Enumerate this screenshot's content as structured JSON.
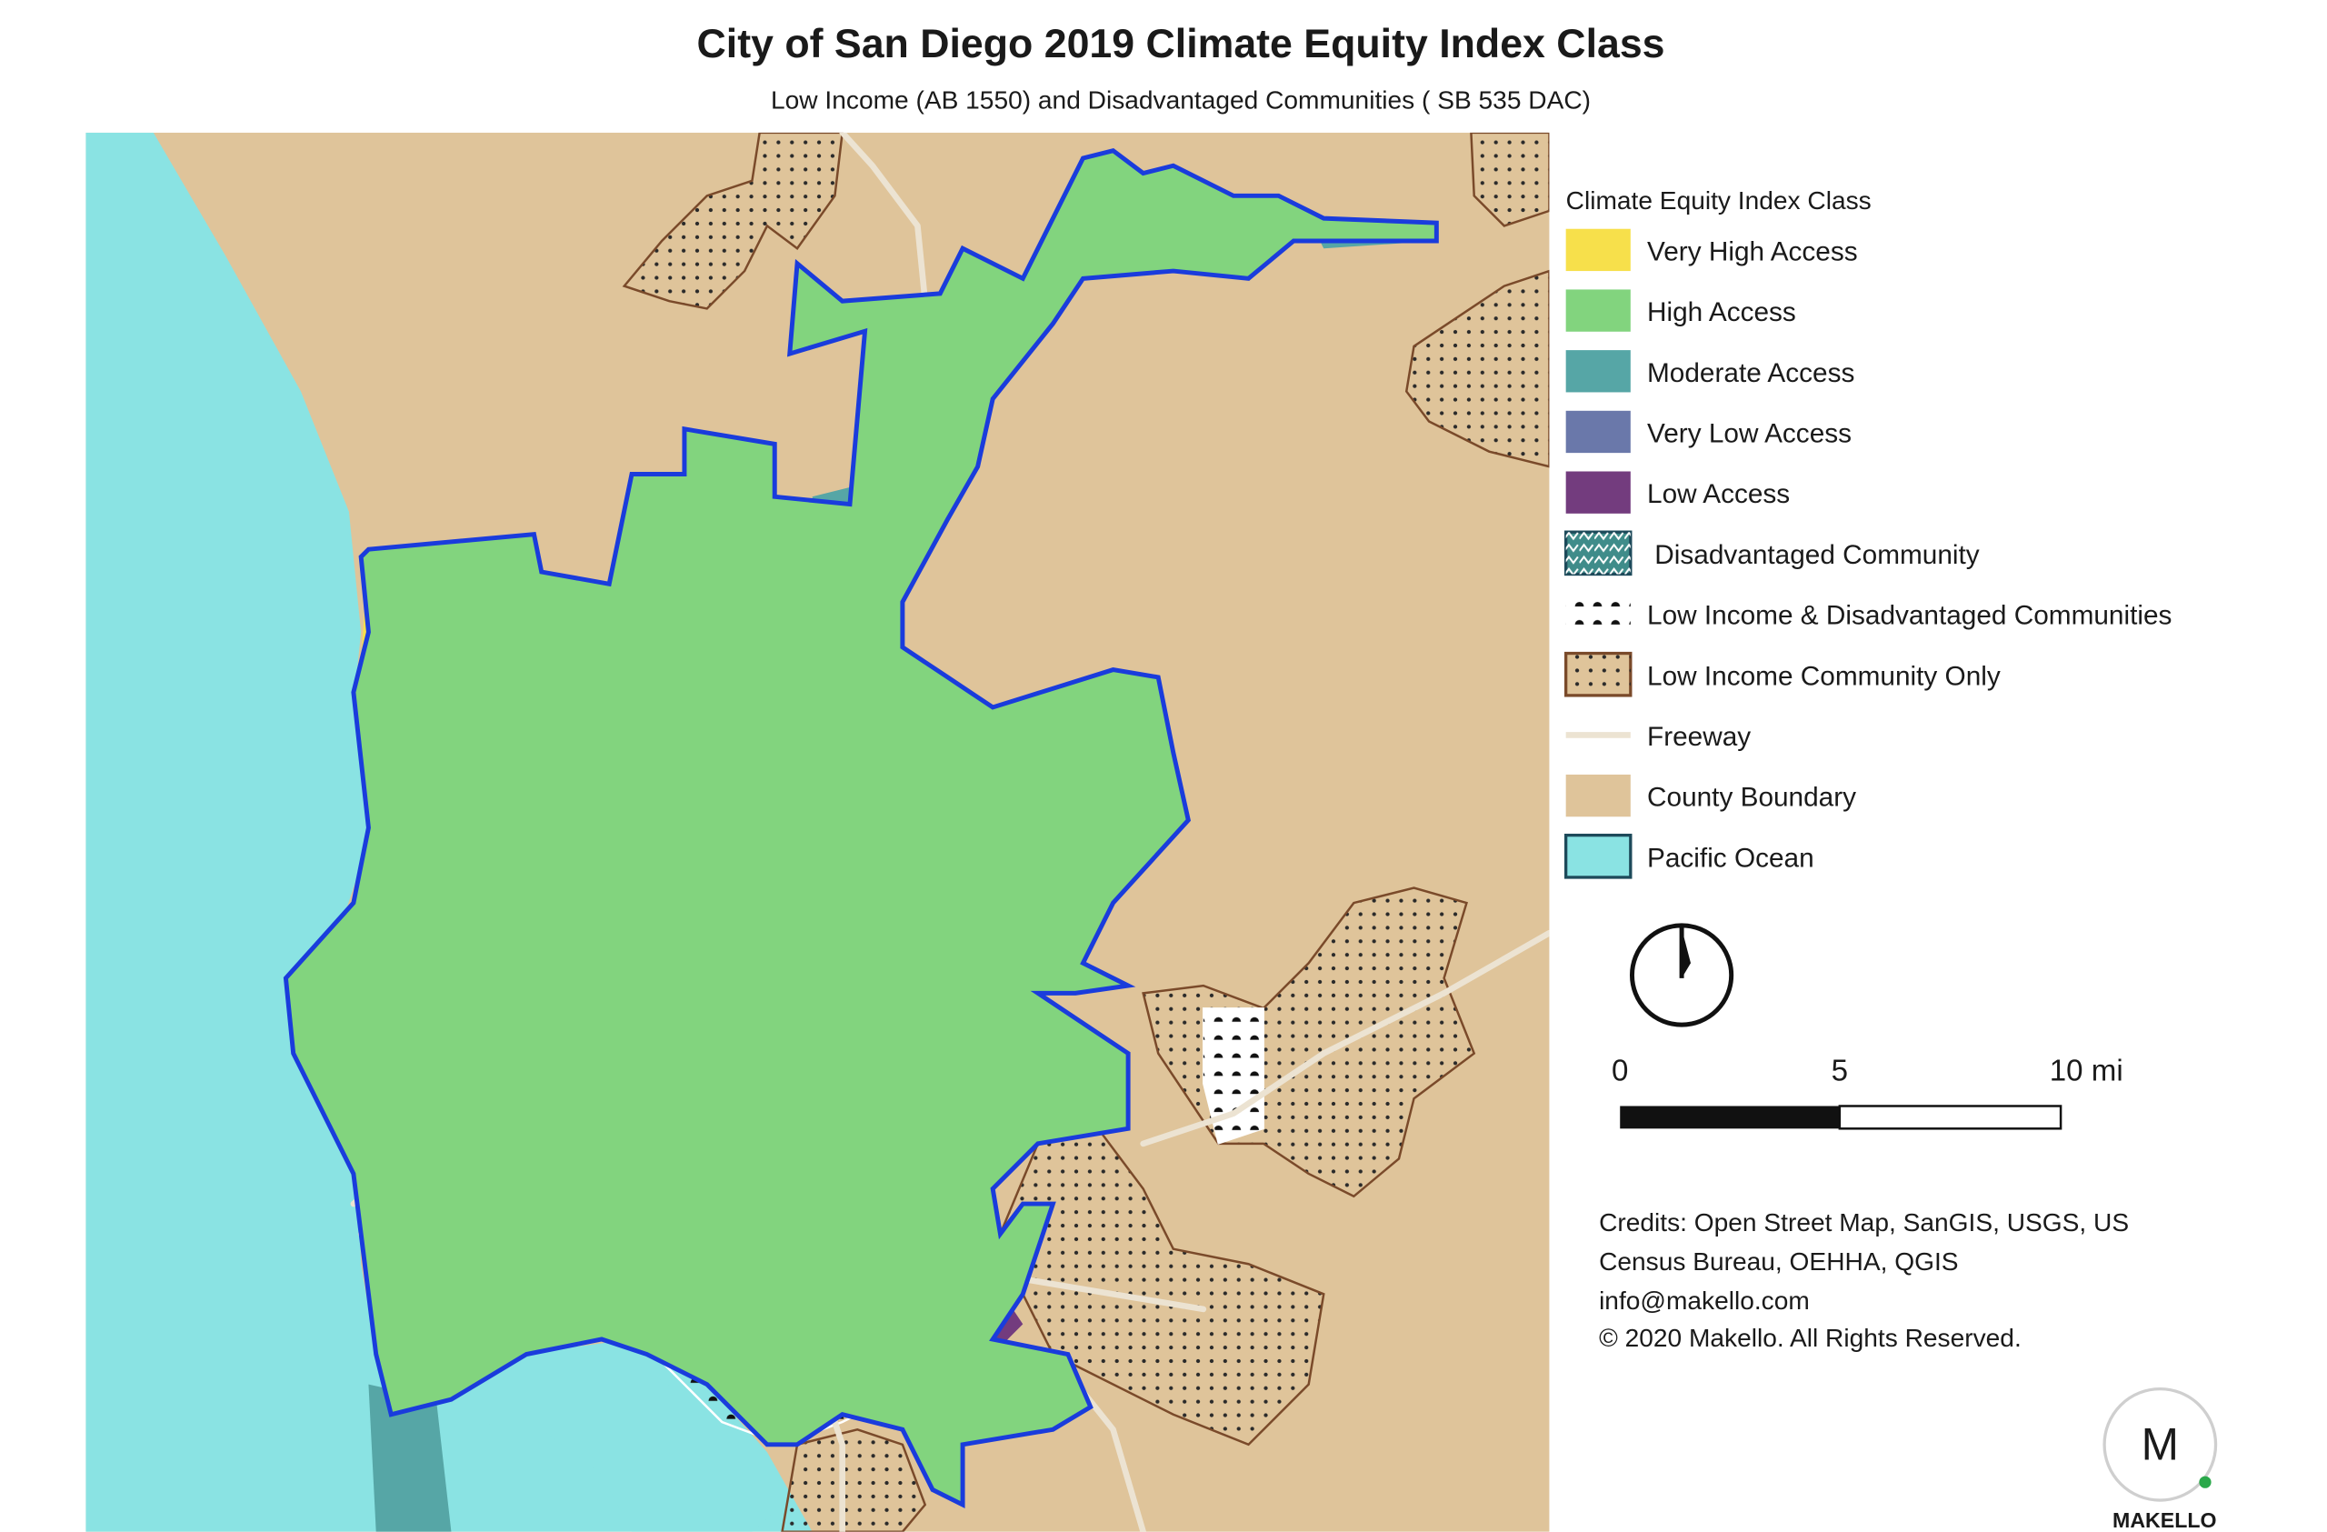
{
  "header": {
    "title": "City of San Diego 2019 Climate Equity Index Class",
    "subtitle": "Low Income (AB 1550) and Disadvantaged Communities ( SB 535 DAC)"
  },
  "legend": {
    "title": "Climate Equity Index Class",
    "items": [
      {
        "label": "Very High Access",
        "color": "#f7e04b"
      },
      {
        "label": "High Access",
        "color": "#82d47e"
      },
      {
        "label": "Moderate Access",
        "color": "#56a6a6"
      },
      {
        "label": "Very Low Access",
        "color": "#6a78aa"
      },
      {
        "label": "Low Access",
        "color": "#733c7e"
      },
      {
        "label": "Disadvantaged Community",
        "color": "#3f8c8a"
      },
      {
        "label": "Low Income & Disadvantaged Communities",
        "color": "#ffffff"
      },
      {
        "label": "Low Income Community Only",
        "color": "#dfc49a"
      },
      {
        "label": "Freeway",
        "color": "#ece3d2"
      },
      {
        "label": "County Boundary",
        "color": "#dfc49a"
      },
      {
        "label": "Pacific Ocean",
        "color": "#8ae3e3"
      }
    ]
  },
  "scale_bar": {
    "labels": [
      "0",
      "5",
      "10 mi"
    ]
  },
  "credits": [
    "Credits: Open Street Map, SanGIS, USGS, US",
    "Census Bureau, OEHHA, QGIS",
    "info@makello.com",
    "© 2020 Makello. All Rights Reserved."
  ],
  "logo": {
    "letter": "M",
    "name": "MAKELLO"
  }
}
